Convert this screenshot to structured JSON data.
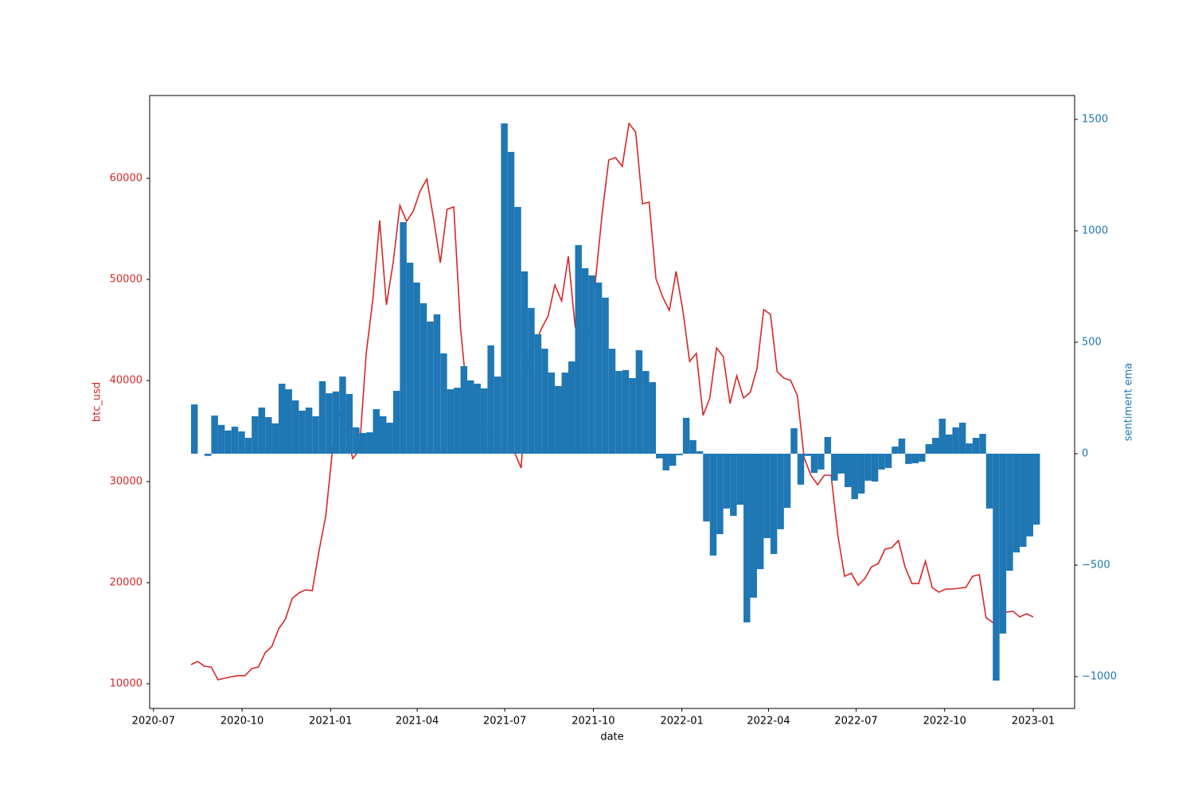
{
  "chart_data": {
    "type": "combo",
    "xlabel": "date",
    "ylabel": "btc_usd",
    "y2label": "sentiment ema",
    "x": [
      "2020-08-09",
      "2020-08-16",
      "2020-08-23",
      "2020-08-30",
      "2020-09-06",
      "2020-09-13",
      "2020-09-20",
      "2020-09-27",
      "2020-10-04",
      "2020-10-11",
      "2020-10-18",
      "2020-10-25",
      "2020-11-01",
      "2020-11-08",
      "2020-11-15",
      "2020-11-22",
      "2020-11-29",
      "2020-12-06",
      "2020-12-13",
      "2020-12-20",
      "2020-12-27",
      "2021-01-03",
      "2021-01-10",
      "2021-01-17",
      "2021-01-24",
      "2021-01-31",
      "2021-02-07",
      "2021-02-14",
      "2021-02-21",
      "2021-02-28",
      "2021-03-07",
      "2021-03-14",
      "2021-03-21",
      "2021-03-28",
      "2021-04-04",
      "2021-04-11",
      "2021-04-18",
      "2021-04-25",
      "2021-05-02",
      "2021-05-09",
      "2021-05-16",
      "2021-05-23",
      "2021-05-30",
      "2021-06-06",
      "2021-06-13",
      "2021-06-20",
      "2021-06-27",
      "2021-07-04",
      "2021-07-11",
      "2021-07-18",
      "2021-07-25",
      "2021-08-01",
      "2021-08-08",
      "2021-08-15",
      "2021-08-22",
      "2021-08-29",
      "2021-09-05",
      "2021-09-12",
      "2021-09-19",
      "2021-09-26",
      "2021-10-03",
      "2021-10-10",
      "2021-10-17",
      "2021-10-24",
      "2021-10-31",
      "2021-11-07",
      "2021-11-14",
      "2021-11-21",
      "2021-11-28",
      "2021-12-05",
      "2021-12-12",
      "2021-12-19",
      "2021-12-26",
      "2022-01-02",
      "2022-01-09",
      "2022-01-16",
      "2022-01-23",
      "2022-01-30",
      "2022-02-06",
      "2022-02-13",
      "2022-02-20",
      "2022-02-27",
      "2022-03-06",
      "2022-03-13",
      "2022-03-20",
      "2022-03-27",
      "2022-04-03",
      "2022-04-10",
      "2022-04-17",
      "2022-04-24",
      "2022-05-01",
      "2022-05-08",
      "2022-05-15",
      "2022-05-22",
      "2022-05-29",
      "2022-06-05",
      "2022-06-12",
      "2022-06-19",
      "2022-06-26",
      "2022-07-03",
      "2022-07-10",
      "2022-07-17",
      "2022-07-24",
      "2022-07-31",
      "2022-08-07",
      "2022-08-14",
      "2022-08-21",
      "2022-08-28",
      "2022-09-04",
      "2022-09-11",
      "2022-09-18",
      "2022-09-25",
      "2022-10-02",
      "2022-10-09",
      "2022-10-16",
      "2022-10-23",
      "2022-10-30",
      "2022-11-06",
      "2022-11-13",
      "2022-11-20",
      "2022-11-27",
      "2022-12-04",
      "2022-12-11",
      "2022-12-18",
      "2022-12-25",
      "2023-01-01"
    ],
    "series": [
      {
        "kind": "line",
        "color": "#d62728",
        "values": [
          11900,
          12200,
          11730,
          11650,
          10400,
          10550,
          10700,
          10800,
          10800,
          11500,
          11650,
          13070,
          13700,
          15430,
          16380,
          18430,
          18980,
          19290,
          19210,
          23150,
          26610,
          33150,
          36700,
          35100,
          32280,
          33150,
          42680,
          48110,
          55830,
          47480,
          51650,
          57320,
          55750,
          56770,
          58740,
          59920,
          55980,
          51650,
          56930,
          57170,
          45200,
          38270,
          36700,
          35100,
          35100,
          34720,
          34330,
          33940,
          32910,
          31340,
          42000,
          43500,
          45120,
          46380,
          49450,
          47870,
          52280,
          45350,
          43000,
          44570,
          49690,
          56380,
          61810,
          62050,
          61180,
          65430,
          64570,
          57480,
          57640,
          50080,
          48270,
          46930,
          50790,
          46930,
          41890,
          42680,
          36540,
          38270,
          43230,
          42360,
          37720,
          40470,
          38270,
          38820,
          41180,
          47010,
          46540,
          40870,
          40240,
          40000,
          38500,
          32360,
          30630,
          29690,
          30630,
          30630,
          24720,
          20630,
          20940,
          19760,
          20390,
          21570,
          21890,
          23310,
          23460,
          24170,
          21500,
          19920,
          19920,
          22130,
          19530,
          19060,
          19370,
          19370,
          19450,
          19530,
          20630,
          20790,
          16540,
          16060,
          16690,
          17090,
          17170,
          16610,
          16930,
          16610
        ]
      },
      {
        "kind": "bar",
        "axis": "y2",
        "color": "#1f77b4",
        "values": [
          221,
          0,
          -10,
          171,
          129,
          104,
          121,
          100,
          71,
          168,
          207,
          164,
          136,
          314,
          289,
          239,
          193,
          207,
          168,
          325,
          271,
          279,
          346,
          268,
          118,
          93,
          96,
          200,
          168,
          139,
          282,
          1039,
          857,
          768,
          675,
          593,
          625,
          450,
          289,
          296,
          393,
          329,
          314,
          293,
          486,
          346,
          1482,
          1354,
          1107,
          818,
          654,
          536,
          471,
          364,
          304,
          364,
          414,
          936,
          832,
          800,
          768,
          700,
          471,
          371,
          375,
          339,
          464,
          371,
          321,
          -21,
          -75,
          -54,
          -7,
          161,
          61,
          11,
          -304,
          -457,
          -361,
          -246,
          -279,
          -229,
          -757,
          -646,
          -518,
          -379,
          -450,
          -339,
          -243,
          114,
          -139,
          -10,
          -86,
          -71,
          75,
          -121,
          -89,
          -150,
          -204,
          -179,
          -121,
          -125,
          -71,
          -64,
          32,
          68,
          -46,
          -43,
          -36,
          43,
          71,
          157,
          86,
          118,
          139,
          46,
          71,
          89,
          -246,
          -1018,
          -807,
          -525,
          -443,
          -418,
          -371,
          -318
        ]
      }
    ],
    "xlim": [
      "2020-06-27",
      "2023-02-13"
    ],
    "xticks": [
      {
        "value": "2020-07-01",
        "label": "2020-07"
      },
      {
        "value": "2020-10-01",
        "label": "2020-10"
      },
      {
        "value": "2021-01-01",
        "label": "2021-01"
      },
      {
        "value": "2021-04-01",
        "label": "2021-04"
      },
      {
        "value": "2021-07-01",
        "label": "2021-07"
      },
      {
        "value": "2021-10-01",
        "label": "2021-10"
      },
      {
        "value": "2022-01-01",
        "label": "2022-01"
      },
      {
        "value": "2022-04-01",
        "label": "2022-04"
      },
      {
        "value": "2022-07-01",
        "label": "2022-07"
      },
      {
        "value": "2022-10-01",
        "label": "2022-10"
      },
      {
        "value": "2023-01-01",
        "label": "2023-01"
      }
    ],
    "ylim": [
      7560,
      68190
    ],
    "yticks": [
      10000,
      20000,
      30000,
      40000,
      50000,
      60000
    ],
    "y2lim": [
      -1143,
      1607
    ],
    "y2ticks": [
      {
        "value": -1000,
        "label": "−1000"
      },
      {
        "value": -500,
        "label": "−500"
      },
      0,
      500,
      1000,
      1500
    ]
  }
}
